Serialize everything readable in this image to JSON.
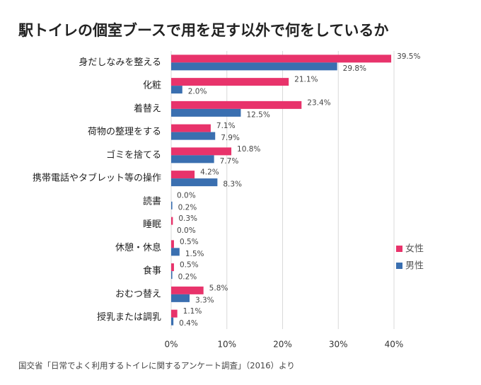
{
  "chart_data": {
    "type": "hbar",
    "title": "駅トイレの個室ブースで用を足す以外で何をしているか",
    "source": "国交省「日常でよく利用するトイレに関するアンケート調査」（2016）より",
    "categories": [
      "身だしなみを整える",
      "化粧",
      "着替え",
      "荷物の整理をする",
      "ゴミを捨てる",
      "携帯電話やタブレット等の操作",
      "読書",
      "睡眠",
      "休憩・休息",
      "食事",
      "おむつ替え",
      "授乳または調乳"
    ],
    "series": [
      {
        "name": "女性",
        "color": "#e8336b",
        "values": [
          39.5,
          21.1,
          23.4,
          7.1,
          10.8,
          4.2,
          0.0,
          0.3,
          0.5,
          0.5,
          5.8,
          1.1
        ],
        "value_labels": [
          "39.5%",
          "21.1%",
          "23.4%",
          "7.1%",
          "10.8%",
          "4.2%",
          "0.0%",
          "0.3%",
          "0.5%",
          "0.5%",
          "5.8%",
          "1.1%"
        ]
      },
      {
        "name": "男性",
        "color": "#3a6fb0",
        "values": [
          29.8,
          2.0,
          12.5,
          7.9,
          7.7,
          8.3,
          0.2,
          0.0,
          1.5,
          0.2,
          3.3,
          0.4
        ],
        "value_labels": [
          "29.8%",
          "2.0%",
          "12.5%",
          "7.9%",
          "7.7%",
          "8.3%",
          "0.2%",
          "0.0%",
          "1.5%",
          "0.2%",
          "3.3%",
          "0.4%"
        ]
      }
    ],
    "xlim": [
      0,
      40
    ],
    "xticks": [
      {
        "value": 0,
        "label": "0%"
      },
      {
        "value": 10,
        "label": "10%"
      },
      {
        "value": 20,
        "label": "20%"
      },
      {
        "value": 30,
        "label": "30%"
      },
      {
        "value": 40,
        "label": "40%"
      }
    ],
    "grid": true,
    "legend": "right"
  }
}
